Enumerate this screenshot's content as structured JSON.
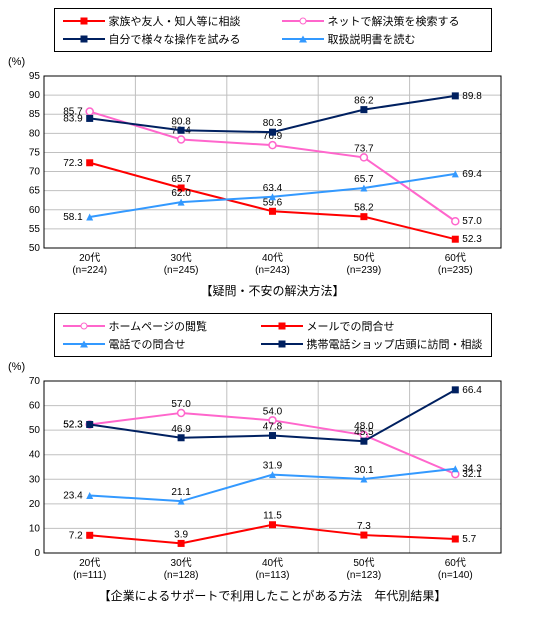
{
  "chart1": {
    "type": "line",
    "yaxis_unit": "(%)",
    "caption": "【疑問・不安の解決方法】",
    "categories": [
      "20代",
      "30代",
      "40代",
      "50代",
      "60代"
    ],
    "n_labels": [
      "(n=224)",
      "(n=245)",
      "(n=243)",
      "(n=239)",
      "(n=235)"
    ],
    "ylim": [
      50,
      95
    ],
    "ytick_step": 5,
    "background_color": "#ffffff",
    "grid_color": "#c0c0c0",
    "axis_color": "#000000",
    "series": [
      {
        "name": "家族や友人・知人等に相談",
        "color": "#ff0000",
        "marker": "square-filled",
        "values": [
          72.3,
          65.7,
          59.6,
          58.2,
          52.3
        ]
      },
      {
        "name": "ネットで解決策を検索する",
        "color": "#ff66cc",
        "marker": "circle-open",
        "values": [
          85.7,
          78.4,
          76.9,
          73.7,
          57.0
        ]
      },
      {
        "name": "自分で様々な操作を試みる",
        "color": "#002060",
        "marker": "square-filled",
        "values": [
          83.9,
          80.8,
          80.3,
          86.2,
          89.8
        ]
      },
      {
        "name": "取扱説明書を読む",
        "color": "#3399ff",
        "marker": "triangle-filled",
        "values": [
          58.1,
          62.0,
          63.4,
          65.7,
          69.4
        ]
      }
    ]
  },
  "chart2": {
    "type": "line",
    "yaxis_unit": "(%)",
    "caption": "【企業によるサポートで利用したことがある方法　年代別結果】",
    "categories": [
      "20代",
      "30代",
      "40代",
      "50代",
      "60代"
    ],
    "n_labels": [
      "(n=111)",
      "(n=128)",
      "(n=113)",
      "(n=123)",
      "(n=140)"
    ],
    "ylim": [
      0,
      70
    ],
    "ytick_step": 10,
    "background_color": "#ffffff",
    "grid_color": "#c0c0c0",
    "axis_color": "#000000",
    "series": [
      {
        "name": "ホームページの閲覧",
        "color": "#ff66cc",
        "marker": "circle-open",
        "values": [
          52.3,
          57.0,
          54.0,
          48.0,
          32.1
        ]
      },
      {
        "name": "メールでの問合せ",
        "color": "#ff0000",
        "marker": "square-filled",
        "values": [
          7.2,
          3.9,
          11.5,
          7.3,
          5.7
        ]
      },
      {
        "name": "電話での問合せ",
        "color": "#3399ff",
        "marker": "triangle-filled",
        "values": [
          23.4,
          21.1,
          31.9,
          30.1,
          34.3
        ]
      },
      {
        "name": "携帯電話ショップ店頭に訪問・相談",
        "color": "#002060",
        "marker": "square-filled",
        "values": [
          52.3,
          46.9,
          47.8,
          45.5,
          66.4
        ]
      }
    ]
  }
}
